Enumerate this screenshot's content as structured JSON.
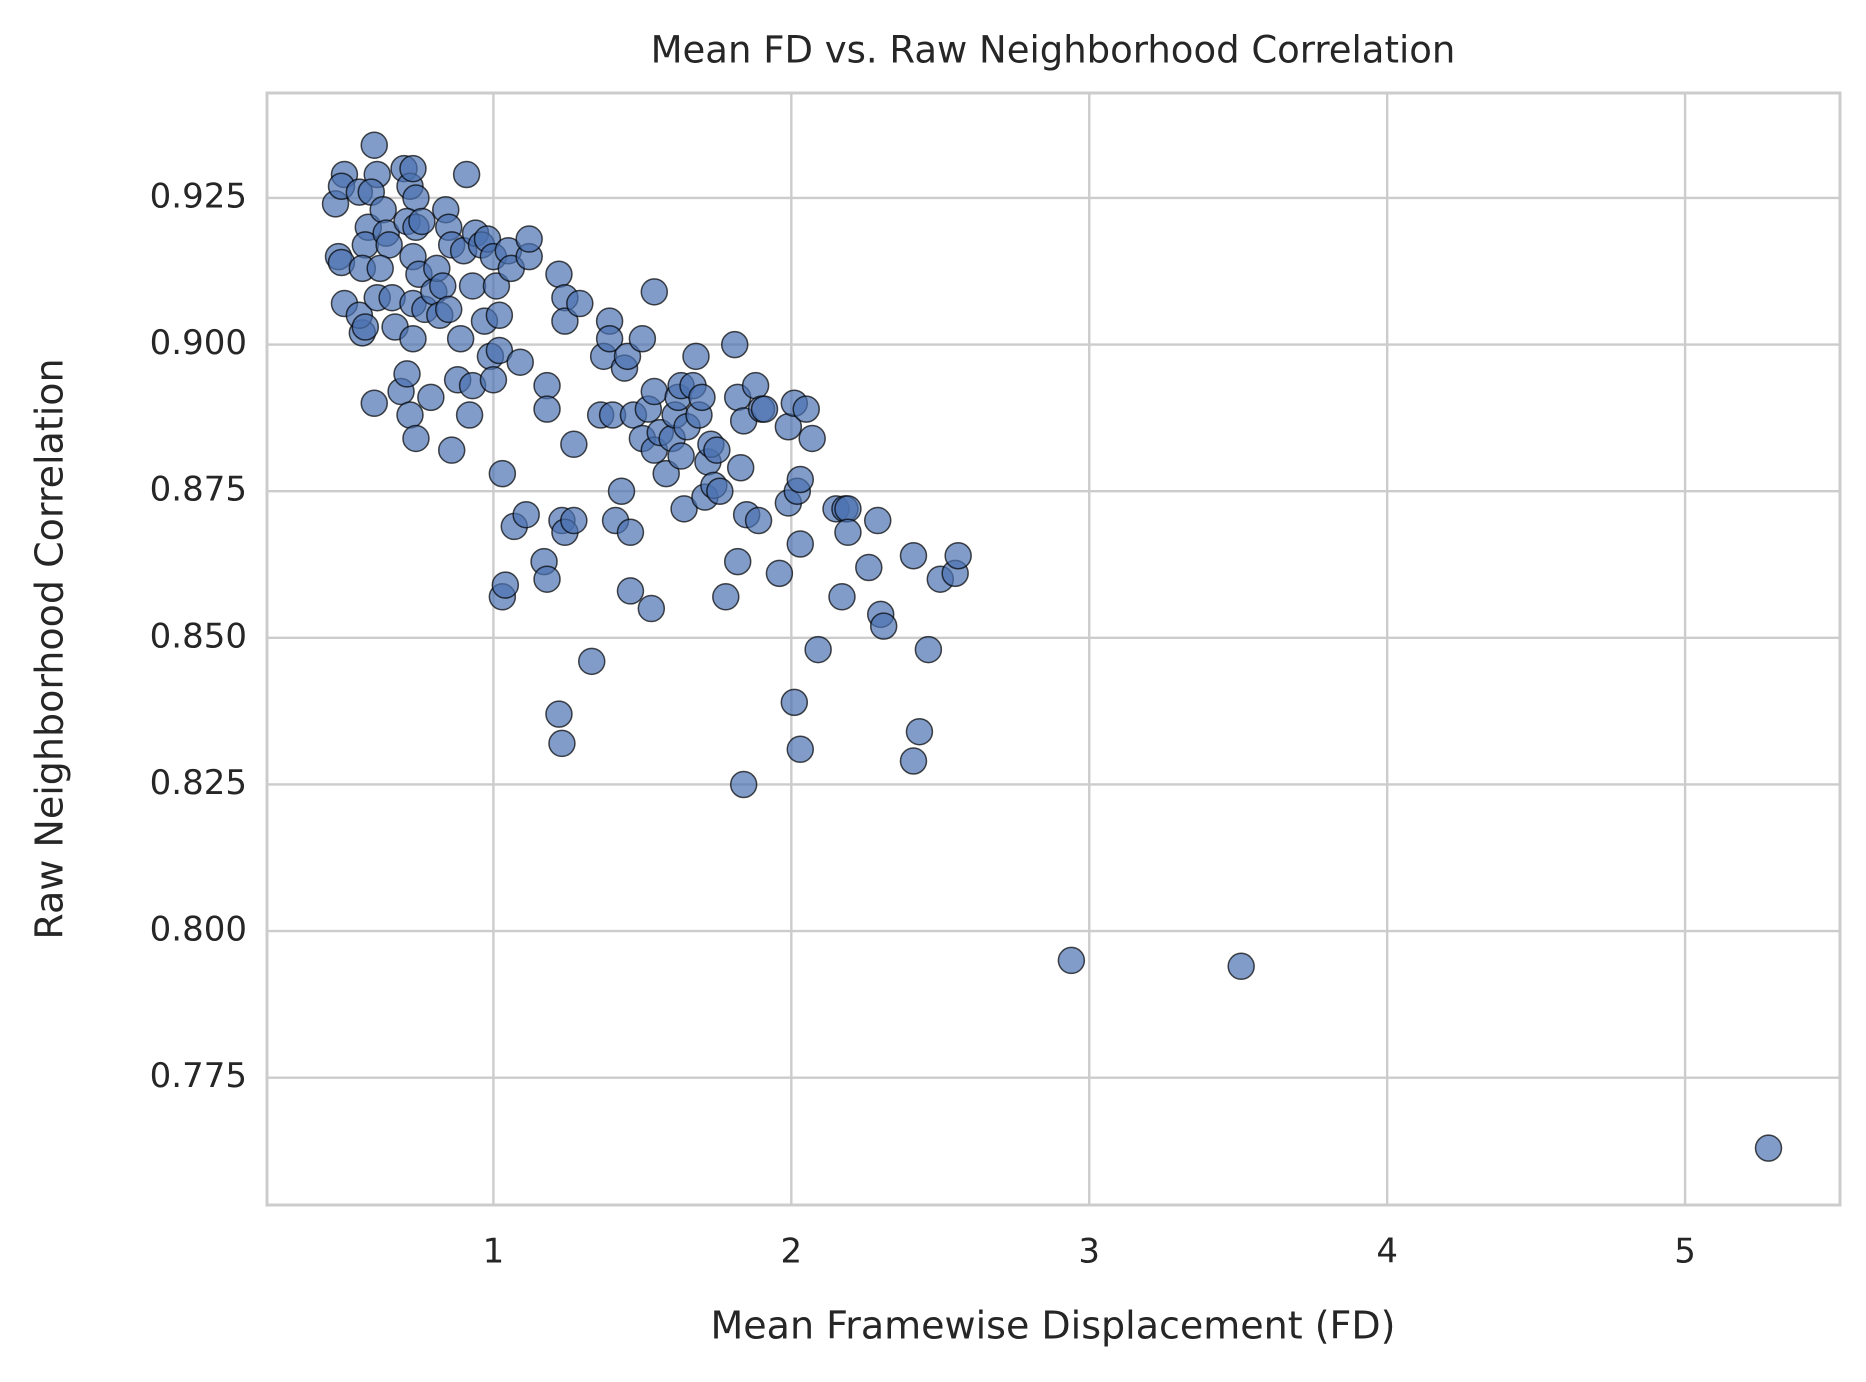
{
  "chart_data": {
    "type": "scatter",
    "title": "Mean FD vs. Raw Neighborhood Correlation",
    "x_label": "Mean Framewise Displacement (FD)",
    "y_label": "Raw Neighborhood Correlation",
    "color": "#4c72b0",
    "grid": true,
    "xlim": [
      0.24,
      5.52
    ],
    "ylim": [
      0.7533,
      0.9429
    ],
    "xticks": [
      1,
      2,
      3,
      4,
      5
    ],
    "yticks": [
      {
        "value": 0.775,
        "label": "0.775"
      },
      {
        "value": 0.8,
        "label": "0.800"
      },
      {
        "value": 0.825,
        "label": "0.825"
      },
      {
        "value": 0.85,
        "label": "0.850"
      },
      {
        "value": 0.875,
        "label": "0.875"
      },
      {
        "value": 0.9,
        "label": "0.900"
      },
      {
        "value": 0.925,
        "label": "0.925"
      }
    ],
    "x": [
      0.47,
      0.5,
      0.49,
      0.48,
      0.49,
      0.5,
      0.55,
      0.56,
      0.55,
      0.57,
      0.6,
      0.61,
      0.59,
      0.58,
      0.57,
      0.56,
      0.61,
      0.63,
      0.64,
      0.65,
      0.66,
      0.67,
      0.62,
      0.6,
      0.69,
      0.7,
      0.72,
      0.73,
      0.74,
      0.71,
      0.74,
      0.76,
      0.73,
      0.71,
      0.72,
      0.74,
      0.73,
      0.73,
      0.75,
      0.77,
      0.79,
      0.8,
      0.81,
      0.82,
      0.83,
      0.84,
      0.85,
      0.86,
      0.85,
      0.86,
      0.88,
      0.89,
      0.9,
      0.91,
      0.92,
      0.93,
      0.93,
      0.94,
      0.96,
      0.97,
      0.98,
      0.99,
      1.0,
      1.01,
      1.0,
      1.02,
      1.02,
      1.03,
      1.05,
      1.06,
      1.07,
      1.09,
      1.11,
      1.12,
      1.12,
      1.03,
      1.04,
      1.18,
      1.18,
      1.17,
      1.18,
      1.22,
      1.24,
      1.24,
      1.29,
      1.27,
      1.22,
      1.23,
      1.23,
      1.24,
      1.27,
      1.33,
      1.36,
      1.37,
      1.39,
      1.39,
      1.4,
      1.41,
      1.43,
      1.44,
      1.45,
      1.46,
      1.46,
      1.47,
      1.5,
      1.5,
      1.52,
      1.53,
      1.54,
      1.54,
      1.54,
      1.56,
      1.58,
      1.6,
      1.61,
      1.62,
      1.63,
      1.63,
      1.64,
      1.65,
      1.67,
      1.68,
      1.69,
      1.7,
      1.71,
      1.72,
      1.73,
      1.74,
      1.75,
      1.76,
      1.78,
      1.81,
      1.82,
      1.82,
      1.83,
      1.84,
      1.85,
      1.84,
      1.88,
      1.89,
      1.9,
      1.91,
      1.96,
      1.99,
      1.99,
      2.01,
      2.01,
      2.02,
      2.03,
      2.03,
      2.03,
      2.05,
      2.07,
      2.09,
      2.15,
      2.17,
      2.18,
      2.19,
      2.19,
      2.26,
      2.29,
      2.3,
      2.31,
      2.41,
      2.41,
      2.43,
      2.46,
      2.5,
      2.55,
      2.56,
      2.94,
      3.51,
      5.28
    ],
    "values": [
      0.924,
      0.929,
      0.927,
      0.915,
      0.914,
      0.907,
      0.926,
      0.902,
      0.905,
      0.903,
      0.934,
      0.929,
      0.926,
      0.92,
      0.917,
      0.913,
      0.908,
      0.923,
      0.919,
      0.917,
      0.908,
      0.903,
      0.913,
      0.89,
      0.892,
      0.93,
      0.927,
      0.93,
      0.925,
      0.921,
      0.92,
      0.921,
      0.915,
      0.895,
      0.888,
      0.884,
      0.901,
      0.907,
      0.912,
      0.906,
      0.891,
      0.909,
      0.913,
      0.905,
      0.91,
      0.923,
      0.92,
      0.917,
      0.906,
      0.882,
      0.894,
      0.901,
      0.916,
      0.929,
      0.888,
      0.893,
      0.91,
      0.919,
      0.917,
      0.904,
      0.918,
      0.898,
      0.894,
      0.91,
      0.915,
      0.905,
      0.899,
      0.878,
      0.916,
      0.913,
      0.869,
      0.897,
      0.871,
      0.915,
      0.918,
      0.857,
      0.859,
      0.893,
      0.889,
      0.863,
      0.86,
      0.912,
      0.908,
      0.904,
      0.907,
      0.883,
      0.837,
      0.832,
      0.87,
      0.868,
      0.87,
      0.846,
      0.888,
      0.898,
      0.904,
      0.901,
      0.888,
      0.87,
      0.875,
      0.896,
      0.898,
      0.868,
      0.858,
      0.888,
      0.901,
      0.884,
      0.889,
      0.855,
      0.909,
      0.892,
      0.882,
      0.885,
      0.878,
      0.884,
      0.888,
      0.891,
      0.893,
      0.881,
      0.872,
      0.886,
      0.893,
      0.898,
      0.888,
      0.891,
      0.874,
      0.88,
      0.883,
      0.876,
      0.882,
      0.875,
      0.857,
      0.9,
      0.891,
      0.863,
      0.879,
      0.887,
      0.871,
      0.825,
      0.893,
      0.87,
      0.889,
      0.889,
      0.861,
      0.873,
      0.886,
      0.89,
      0.839,
      0.875,
      0.877,
      0.866,
      0.831,
      0.889,
      0.884,
      0.848,
      0.872,
      0.857,
      0.872,
      0.872,
      0.868,
      0.862,
      0.87,
      0.854,
      0.852,
      0.864,
      0.829,
      0.834,
      0.848,
      0.86,
      0.861,
      0.864,
      0.795,
      0.794,
      0.763
    ]
  }
}
